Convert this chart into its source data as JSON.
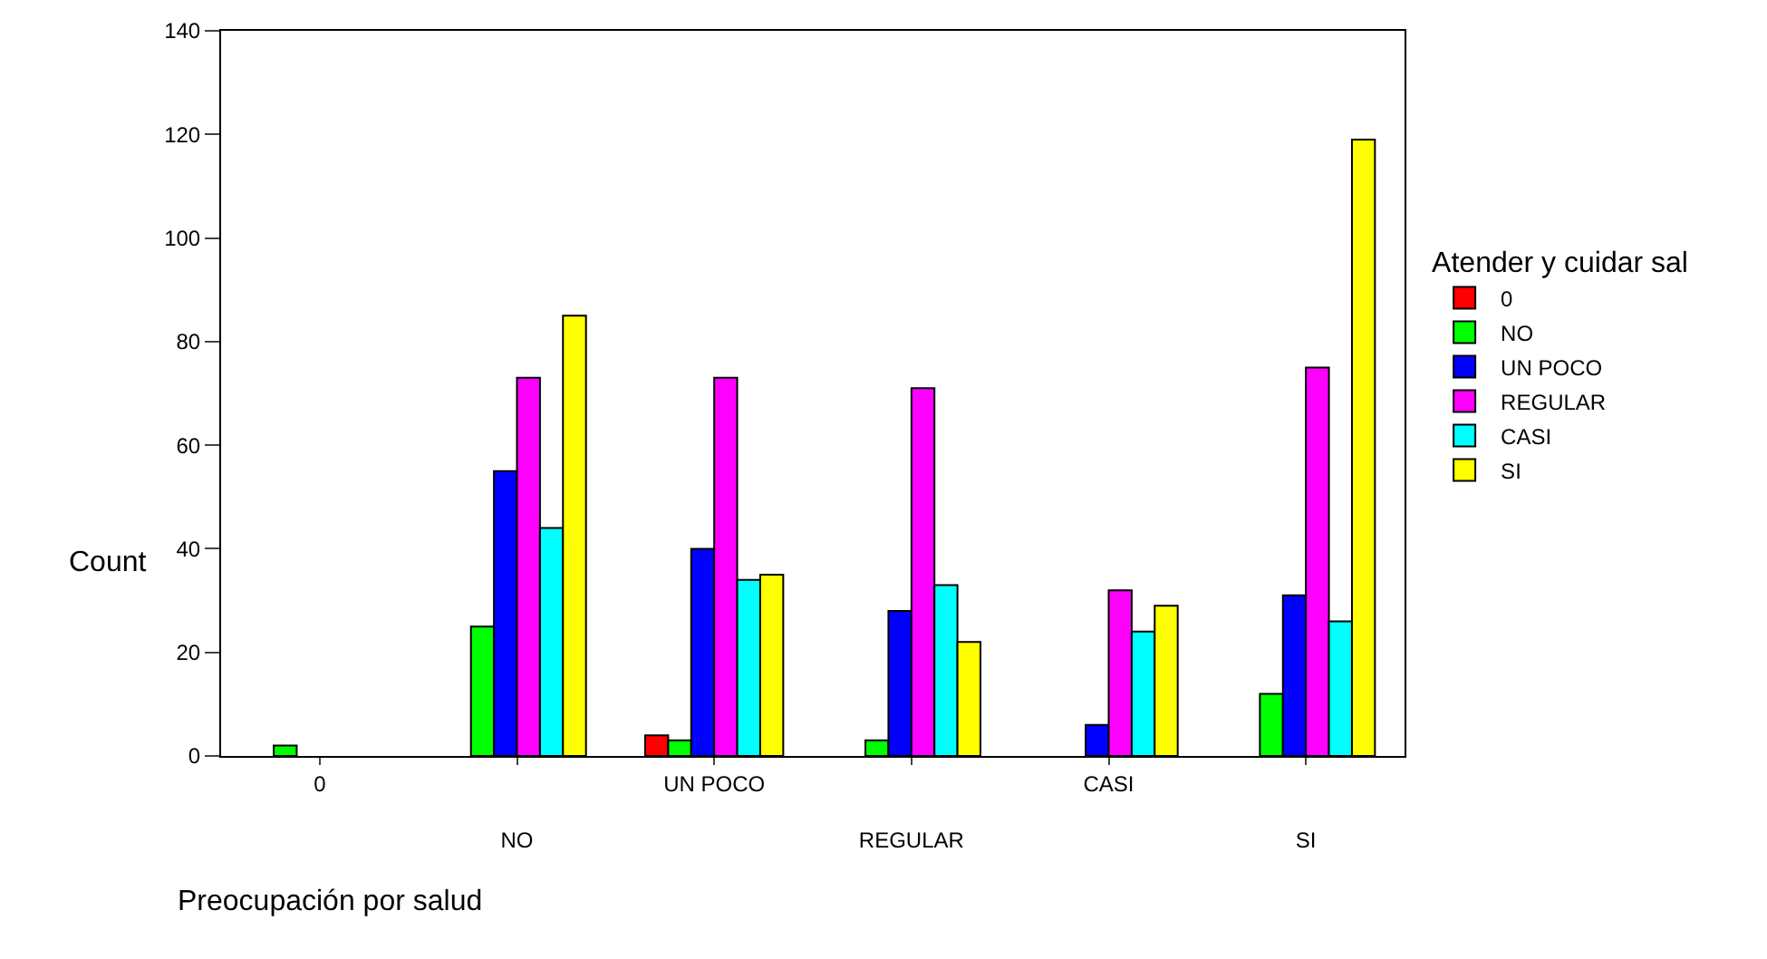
{
  "chart_data": {
    "type": "bar",
    "xlabel": "Preocupación por salud",
    "ylabel": "Count",
    "legend_title": "Atender y cuidar sal",
    "categories": [
      "0",
      "NO",
      "UN POCO",
      "REGULAR",
      "CASI",
      "SI"
    ],
    "series": [
      {
        "name": "0",
        "color": "#ff0000",
        "values": [
          null,
          null,
          4,
          null,
          null,
          null
        ]
      },
      {
        "name": "NO",
        "color": "#00ff00",
        "values": [
          2,
          25,
          3,
          3,
          null,
          12
        ]
      },
      {
        "name": "UN POCO",
        "color": "#0000ff",
        "values": [
          null,
          55,
          40,
          28,
          6,
          31
        ]
      },
      {
        "name": "REGULAR",
        "color": "#ff00ff",
        "values": [
          null,
          73,
          73,
          71,
          32,
          75
        ]
      },
      {
        "name": "CASI",
        "color": "#00ffff",
        "values": [
          null,
          44,
          34,
          33,
          24,
          26
        ]
      },
      {
        "name": "SI",
        "color": "#ffff00",
        "values": [
          null,
          85,
          35,
          22,
          29,
          119
        ]
      }
    ],
    "ylim": [
      0,
      140
    ],
    "yticks": [
      0,
      20,
      40,
      60,
      80,
      100,
      120,
      140
    ],
    "grid": false,
    "legend": "right"
  }
}
